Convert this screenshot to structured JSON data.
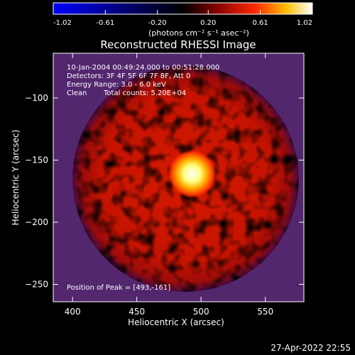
{
  "colorbar": {
    "ticks": [
      "-1.02",
      "-0.61",
      "-0.20",
      "0.20",
      "0.61",
      "1.02"
    ],
    "values": [
      -1.02,
      -0.61,
      -0.2,
      0.2,
      0.61,
      1.02
    ],
    "unit_label": "(photons cm⁻² s⁻¹ asec⁻²)"
  },
  "footer": {
    "timestamp": "27-Apr-2022 22:55"
  },
  "chart_data": {
    "type": "heatmap",
    "title": "Reconstructed RHESSI Image",
    "xlabel": "Heliocentric X (arcsec)",
    "ylabel": "Heliocentric Y (arcsec)",
    "xlim": [
      385,
      580
    ],
    "ylim": [
      -264,
      -64
    ],
    "x_ticks": [
      400,
      450,
      500,
      550
    ],
    "y_ticks": [
      -100,
      -150,
      -200,
      -250
    ],
    "x_tick_labels": [
      "400",
      "450",
      "500",
      "550"
    ],
    "y_tick_labels": [
      "−100",
      "−150",
      "−200",
      "−250"
    ],
    "colorscale": [
      "#0000ff",
      "#000000",
      "#ff0000",
      "#ffff00",
      "#ffffff"
    ],
    "annotations": [
      "10-Jan-2004 00:49:24.000 to 00:51:28.000",
      "Detectors: 3F 4F 5F 6F 7F 8F, Att 0",
      "Energy Range: 3.0 - 6.0 keV",
      "Clean",
      "Total counts: 5.20E+04"
    ],
    "peak_label": "Position of Peak = [493,-161]",
    "peak": {
      "x": 493,
      "y": -161
    },
    "disk_center": {
      "x": 488,
      "y": -165
    },
    "disk_radius": 88
  }
}
